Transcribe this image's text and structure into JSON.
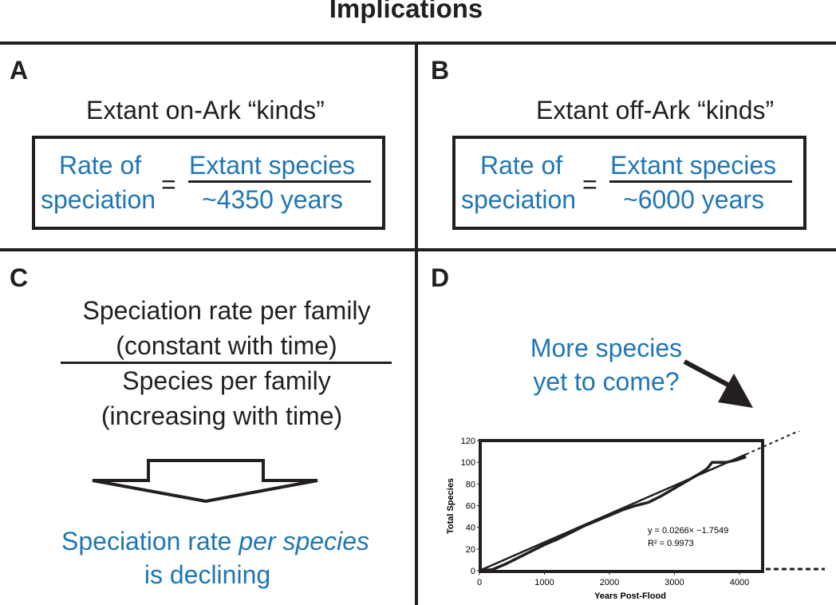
{
  "title": "Implications",
  "panels": {
    "a": {
      "label": "A",
      "heading": "Extant on-Ark “kinds”",
      "lhs_line1": "Rate of",
      "lhs_line2": "speciation",
      "equals": "=",
      "numerator": "Extant species",
      "denominator": "~4350 years"
    },
    "b": {
      "label": "B",
      "heading": "Extant off-Ark “kinds”",
      "lhs_line1": "Rate of",
      "lhs_line2": "speciation",
      "equals": "=",
      "numerator": "Extant species",
      "denominator": "~6000 years"
    },
    "c": {
      "label": "C",
      "numerator_line1": "Speciation rate per family",
      "numerator_line2": "(constant with time)",
      "denominator_line1": "Species per family",
      "denominator_line2": "(increasing with time)",
      "conclusion_pre": "Speciation rate ",
      "conclusion_italic": "per species",
      "conclusion_line2": "is declining"
    },
    "d": {
      "label": "D",
      "annotation_line1": "More species",
      "annotation_line2": "yet to come?"
    }
  },
  "colors": {
    "blue": "#1f76b5",
    "black": "#231f20"
  },
  "chart_data": {
    "type": "line",
    "xlabel": "Years Post-Flood",
    "ylabel": "Total Species",
    "xlim": [
      0,
      4300
    ],
    "ylim": [
      0,
      120
    ],
    "xticks": [
      0,
      1000,
      2000,
      3000,
      4000
    ],
    "yticks": [
      0,
      20,
      40,
      60,
      80,
      100,
      120
    ],
    "x_tick_labels": [
      "0",
      "1000",
      "2000",
      "3000",
      "4000"
    ],
    "y_tick_labels": [
      "0",
      "20",
      "40",
      "60",
      "80",
      "100",
      "120"
    ],
    "equation": "y = 0.0266× −1.7549",
    "r_squared": "R² = 0.9973",
    "series": [
      {
        "name": "Total species",
        "x": [
          0,
          200,
          400,
          600,
          800,
          1000,
          1200,
          1400,
          1600,
          1800,
          2000,
          2200,
          2400,
          2600,
          2800,
          3000,
          3200,
          3400,
          3500,
          3580,
          3650,
          3800,
          3950,
          4100
        ],
        "y": [
          0,
          1,
          6,
          12,
          18,
          24,
          29,
          35,
          41,
          46,
          51,
          56,
          60,
          63,
          69,
          76,
          83,
          90,
          94,
          100,
          100,
          100,
          102,
          105
        ]
      }
    ],
    "trendline": {
      "slope": 0.0266,
      "intercept": -1.7549,
      "x_from": 0,
      "x_to": 4100
    },
    "extrapolation": {
      "x_to": 5100
    }
  }
}
